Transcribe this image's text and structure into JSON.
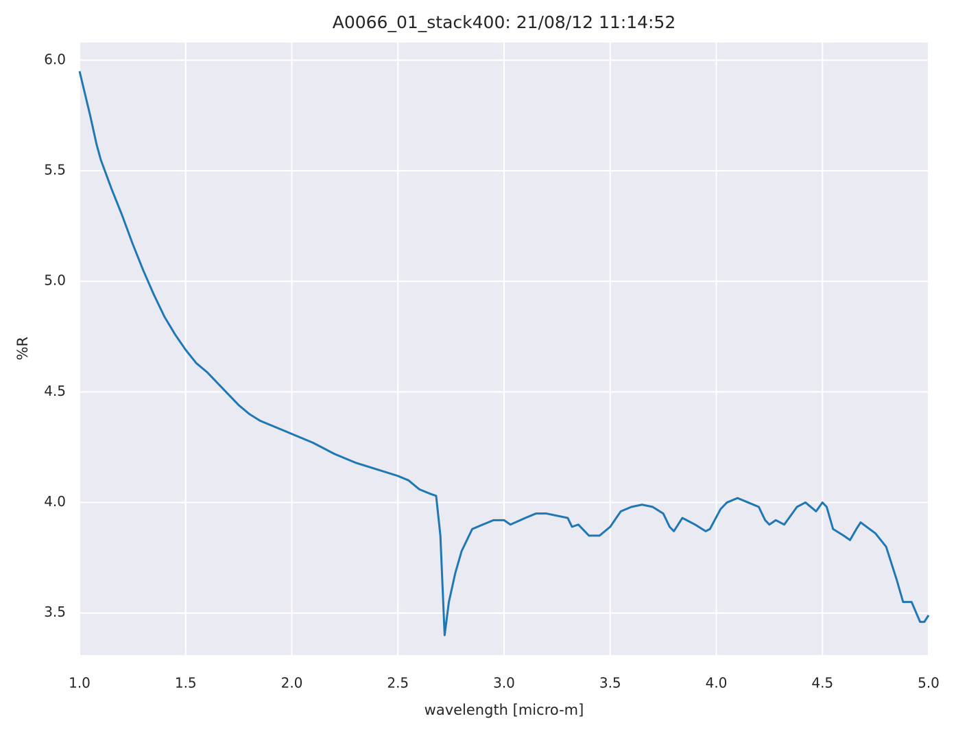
{
  "chart_data": {
    "type": "line",
    "title": "A0066_01_stack400:  21/08/12 11:14:52",
    "xlabel": "wavelength [micro-m]",
    "ylabel": "%R",
    "xlim": [
      1.0,
      5.0
    ],
    "ylim": [
      3.31,
      6.08
    ],
    "xticks": [
      {
        "value": 1,
        "label": "1.0"
      },
      1.5,
      {
        "value": 2,
        "label": "2.0"
      },
      2.5,
      {
        "value": 3,
        "label": "3.0"
      },
      3.5,
      {
        "value": 4,
        "label": "4.0"
      },
      4.5,
      {
        "value": 5,
        "label": "5.0"
      }
    ],
    "yticks": [
      3.5,
      {
        "value": 4,
        "label": "4.0"
      },
      4.5,
      {
        "value": 5,
        "label": "5.0"
      },
      5.5,
      {
        "value": 6,
        "label": "6.0"
      }
    ],
    "grid": true,
    "background": "#eaeaf2",
    "x": [
      1.0,
      1.02,
      1.05,
      1.08,
      1.1,
      1.15,
      1.2,
      1.25,
      1.3,
      1.35,
      1.4,
      1.45,
      1.5,
      1.55,
      1.6,
      1.65,
      1.7,
      1.75,
      1.8,
      1.85,
      1.9,
      1.95,
      2.0,
      2.1,
      2.2,
      2.3,
      2.4,
      2.5,
      2.55,
      2.6,
      2.65,
      2.68,
      2.7,
      2.72,
      2.74,
      2.77,
      2.8,
      2.85,
      2.9,
      2.95,
      3.0,
      3.03,
      3.1,
      3.15,
      3.2,
      3.3,
      3.32,
      3.35,
      3.4,
      3.45,
      3.5,
      3.55,
      3.6,
      3.65,
      3.7,
      3.75,
      3.78,
      3.8,
      3.84,
      3.9,
      3.95,
      3.97,
      4.02,
      4.05,
      4.1,
      4.15,
      4.2,
      4.23,
      4.25,
      4.28,
      4.32,
      4.38,
      4.42,
      4.47,
      4.5,
      4.52,
      4.55,
      4.6,
      4.63,
      4.66,
      4.68,
      4.75,
      4.8,
      4.85,
      4.88,
      4.92,
      4.96,
      4.98,
      5.0
    ],
    "series": [
      {
        "color": "#1f77b4",
        "values": [
          5.95,
          5.87,
          5.75,
          5.62,
          5.55,
          5.42,
          5.3,
          5.17,
          5.05,
          4.94,
          4.84,
          4.76,
          4.69,
          4.63,
          4.59,
          4.54,
          4.49,
          4.44,
          4.4,
          4.37,
          4.35,
          4.33,
          4.31,
          4.27,
          4.22,
          4.18,
          4.15,
          4.12,
          4.1,
          4.06,
          4.04,
          4.03,
          3.85,
          3.4,
          3.55,
          3.68,
          3.78,
          3.88,
          3.9,
          3.92,
          3.92,
          3.9,
          3.93,
          3.95,
          3.95,
          3.93,
          3.89,
          3.9,
          3.85,
          3.85,
          3.89,
          3.96,
          3.98,
          3.99,
          3.98,
          3.95,
          3.89,
          3.87,
          3.93,
          3.9,
          3.87,
          3.88,
          3.97,
          4.0,
          4.02,
          4.0,
          3.98,
          3.92,
          3.9,
          3.92,
          3.9,
          3.98,
          4.0,
          3.96,
          4.0,
          3.98,
          3.88,
          3.85,
          3.83,
          3.88,
          3.91,
          3.86,
          3.8,
          3.65,
          3.55,
          3.55,
          3.46,
          3.46,
          3.49
        ]
      }
    ]
  }
}
